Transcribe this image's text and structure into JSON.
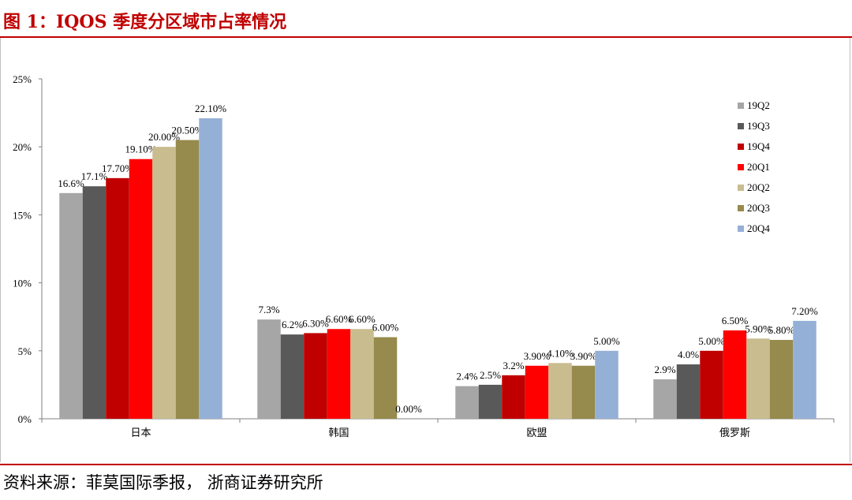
{
  "title": "图  1：IQOS 季度分区域市占率情况",
  "source": "资料来源：菲莫国际季报，  浙商证券研究所",
  "chart_data": {
    "type": "bar",
    "categories": [
      "日本",
      "韩国",
      "欧盟",
      "俄罗斯"
    ],
    "ylim": [
      0,
      25
    ],
    "yticks": [
      "0%",
      "5%",
      "10%",
      "15%",
      "20%",
      "25%"
    ],
    "ytick_values": [
      0,
      5,
      10,
      15,
      20,
      25
    ],
    "legend_position": "right",
    "series": [
      {
        "name": "19Q2",
        "color": "#a6a6a6",
        "values": [
          16.6,
          7.3,
          2.4,
          2.9
        ],
        "labels": [
          "16.6%",
          "7.3%",
          "2.4%",
          "2.9%"
        ]
      },
      {
        "name": "19Q3",
        "color": "#595959",
        "values": [
          17.1,
          6.2,
          2.5,
          4.0
        ],
        "labels": [
          "17.1%",
          "6.2%",
          "2.5%",
          "4.0%"
        ]
      },
      {
        "name": "19Q4",
        "color": "#c00000",
        "values": [
          17.7,
          6.3,
          3.2,
          5.0
        ],
        "labels": [
          "17.70%",
          "6.30%",
          "3.2%",
          "5.00%"
        ]
      },
      {
        "name": "20Q1",
        "color": "#ff0000",
        "values": [
          19.1,
          6.6,
          3.9,
          6.5
        ],
        "labels": [
          "19.10%",
          "6.60%",
          "3.90%",
          "6.50%"
        ]
      },
      {
        "name": "20Q2",
        "color": "#c9bc8f",
        "values": [
          20.0,
          6.6,
          4.1,
          5.9
        ],
        "labels": [
          "20.00%",
          "6.60%",
          "4.10%",
          "5.90%"
        ]
      },
      {
        "name": "20Q3",
        "color": "#968a4c",
        "values": [
          20.5,
          6.0,
          3.9,
          5.8
        ],
        "labels": [
          "20.50%",
          "6.00%",
          "3.90%",
          "5.80%"
        ]
      },
      {
        "name": "20Q4",
        "color": "#95b0d6",
        "values": [
          22.1,
          0.0,
          5.0,
          7.2
        ],
        "labels": [
          "22.10%",
          "0.00%",
          "5.00%",
          "7.20%"
        ]
      }
    ]
  }
}
